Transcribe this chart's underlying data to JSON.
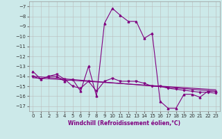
{
  "xlabel": "Windchill (Refroidissement éolien,°C)",
  "background_color": "#cce9e9",
  "line_color": "#800080",
  "grid_color": "#bbbbbb",
  "xlim": [
    -0.5,
    23.5
  ],
  "ylim": [
    -17.5,
    -6.5
  ],
  "yticks": [
    -17,
    -16,
    -15,
    -14,
    -13,
    -12,
    -11,
    -10,
    -9,
    -8,
    -7
  ],
  "xticks": [
    0,
    1,
    2,
    3,
    4,
    5,
    6,
    7,
    8,
    9,
    10,
    11,
    12,
    13,
    14,
    15,
    16,
    17,
    18,
    19,
    20,
    21,
    22,
    23
  ],
  "series1_x": [
    0,
    1,
    2,
    3,
    4,
    5,
    6,
    7,
    8,
    9,
    10,
    11,
    12,
    13,
    14,
    15,
    16,
    17,
    18,
    19,
    20,
    21,
    22,
    23
  ],
  "series1_y": [
    -13.5,
    -14.3,
    -14.0,
    -14.0,
    -14.5,
    -14.3,
    -15.5,
    -13.0,
    -16.0,
    -8.7,
    -7.2,
    -7.9,
    -8.5,
    -8.5,
    -10.2,
    -9.7,
    -16.5,
    -17.2,
    -17.2,
    -15.8,
    -15.8,
    -16.1,
    -15.5,
    -15.5
  ],
  "series2_x": [
    0,
    1,
    2,
    3,
    4,
    5,
    6,
    7,
    8,
    9,
    10,
    11,
    12,
    13,
    14,
    15,
    16,
    17,
    18,
    19,
    20,
    21,
    22,
    23
  ],
  "series2_y": [
    -14.0,
    -14.3,
    -14.0,
    -13.8,
    -14.3,
    -15.0,
    -15.2,
    -14.5,
    -15.5,
    -14.5,
    -14.2,
    -14.5,
    -14.5,
    -14.5,
    -14.7,
    -15.0,
    -15.0,
    -15.2,
    -15.3,
    -15.4,
    -15.5,
    -15.6,
    -15.6,
    -15.7
  ],
  "trend1_x": [
    0,
    23
  ],
  "trend1_y": [
    -14.0,
    -15.5
  ],
  "trend2_x": [
    0,
    23
  ],
  "trend2_y": [
    -14.15,
    -15.35
  ],
  "xlabel_fontsize": 5.5,
  "tick_fontsize": 5.0
}
